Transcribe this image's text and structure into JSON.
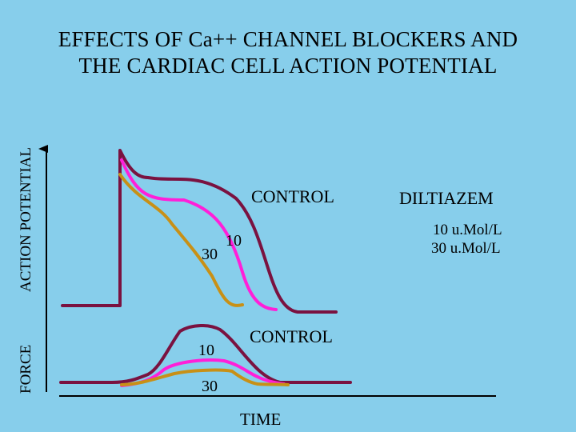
{
  "title": {
    "line1": "EFFECTS OF Ca++ CHANNEL BLOCKERS AND",
    "line2": "THE CARDIAC CELL ACTION POTENTIAL"
  },
  "axes": {
    "y_top_label": "ACTION POTENTIAL",
    "y_bottom_label": "FORCE",
    "x_label": "TIME"
  },
  "legend": {
    "drug": "DILTIAZEM",
    "dose_1": "10 u.Mol/L",
    "dose_2": "30 u.Mol/L"
  },
  "curve_labels": {
    "ap_control": "CONTROL",
    "ap_10": "10",
    "ap_30": "30",
    "force_control": "CONTROL",
    "force_10": "10",
    "force_30": "30"
  },
  "colors": {
    "background": "#87CEEB",
    "control": "#7A1240",
    "dose_10": "#FF1FD8",
    "dose_30": "#C89016",
    "axis": "#000000"
  }
}
